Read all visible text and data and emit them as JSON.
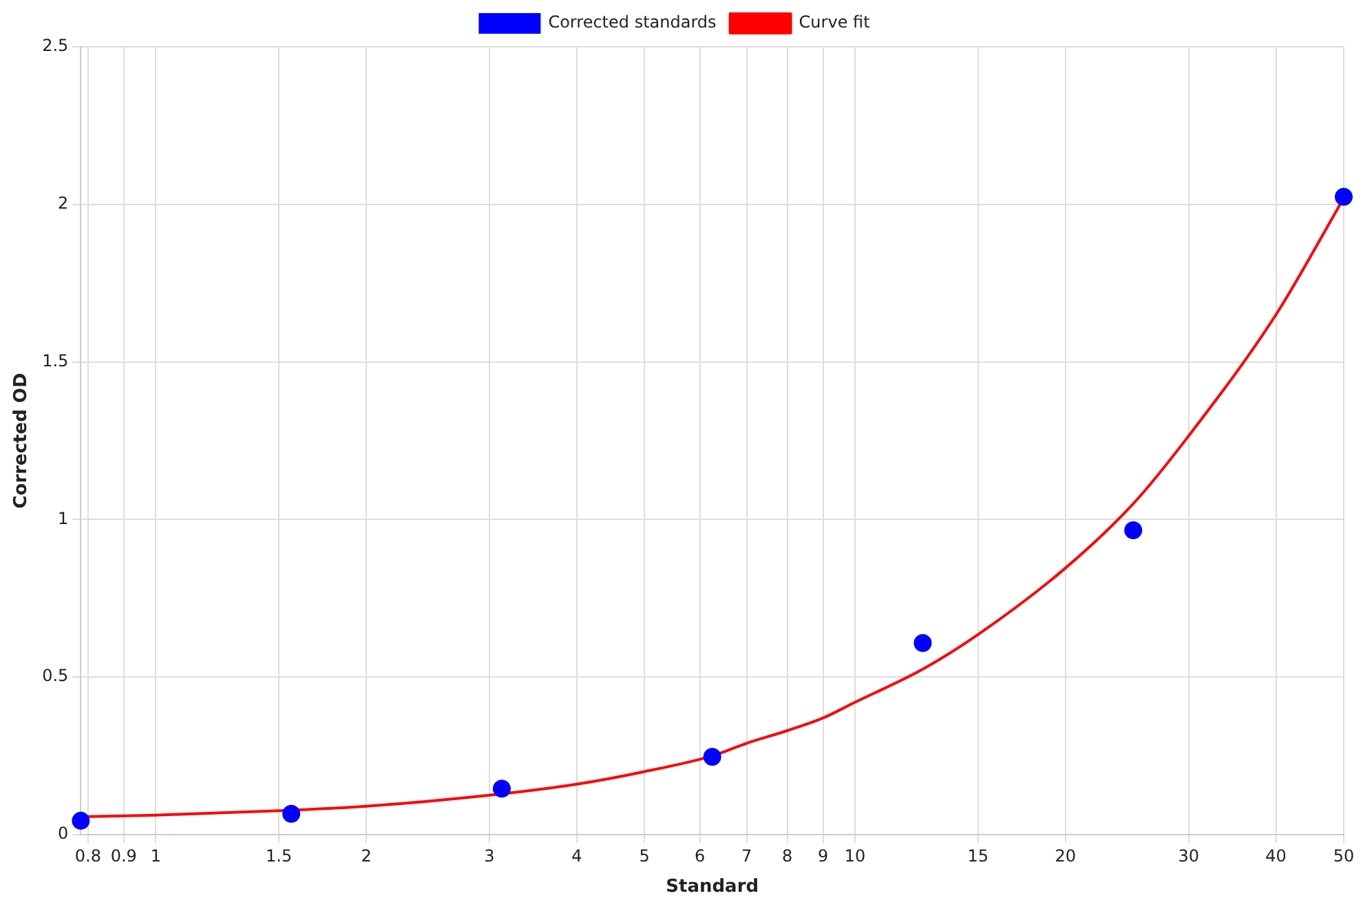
{
  "chart_data": {
    "type": "scatter",
    "xlabel": "Standard",
    "ylabel": "Corrected OD",
    "log": "x",
    "grid": true,
    "legend": "top",
    "xlim": [
      0.78125,
      50
    ],
    "xticks": [
      0.8,
      0.9,
      1,
      1.5,
      2,
      3,
      4,
      5,
      6,
      7,
      8,
      9,
      10,
      15,
      20,
      30,
      40,
      50
    ],
    "ylim": [
      0,
      2.5
    ],
    "yticks": [
      0,
      0.5,
      1,
      1.5,
      2,
      2.5
    ],
    "series": [
      {
        "name": "Corrected standards",
        "type": "scatter",
        "marker": "circle",
        "color": "#0000ff",
        "x": [
          0.78125,
          1.5625,
          3.125,
          6.25,
          12.5,
          25,
          50
        ],
        "values": [
          0.044,
          0.066,
          0.146,
          0.247,
          0.608,
          0.966,
          2.024
        ]
      },
      {
        "name": "Curve fit",
        "type": "line",
        "marker": "none",
        "color": "#ff0000",
        "x": [
          0.78125,
          1,
          1.5,
          2,
          3,
          4,
          5,
          6.25,
          7,
          8,
          9,
          10,
          12.5,
          15,
          20,
          25,
          30,
          40,
          50
        ],
        "values": [
          0.057,
          0.062,
          0.076,
          0.09,
          0.125,
          0.16,
          0.2,
          0.25,
          0.29,
          0.33,
          0.37,
          0.42,
          0.525,
          0.635,
          0.846,
          1.05,
          1.265,
          1.65,
          2.02
        ]
      }
    ]
  }
}
